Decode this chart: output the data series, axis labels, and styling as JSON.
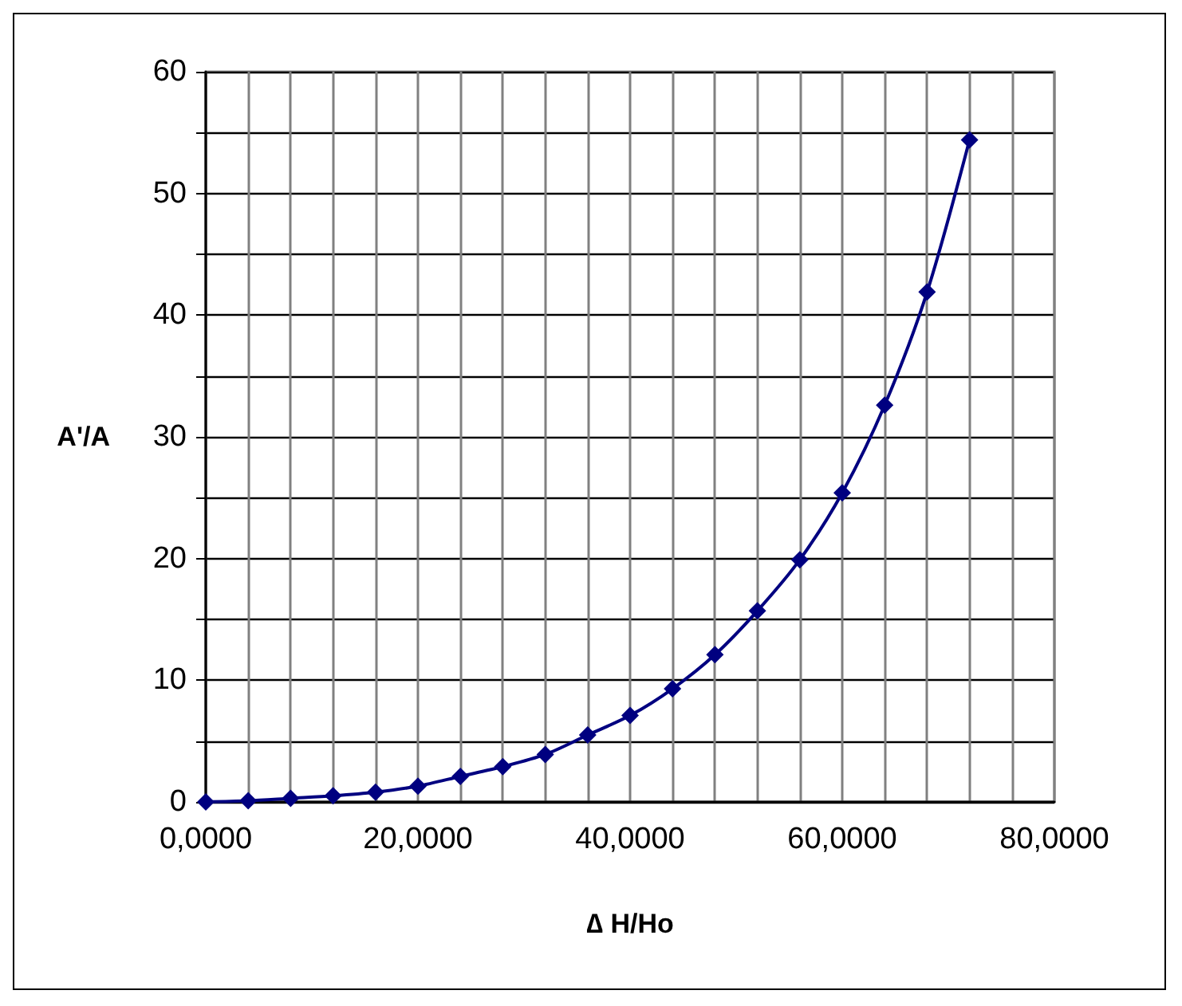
{
  "chart_data": {
    "type": "line",
    "xlabel": "∆ H/Ho",
    "ylabel": "A'/A",
    "categories": [
      "0,0000",
      null,
      null,
      null,
      null,
      "20,0000",
      null,
      null,
      null,
      null,
      "40,0000",
      null,
      null,
      null,
      null,
      "60,0000",
      null,
      null,
      null,
      null,
      "80,0000"
    ],
    "series": [
      {
        "color": "#000080",
        "values": [
          0,
          0.1,
          0.3,
          0.5,
          0.8,
          1.3,
          2.1,
          2.9,
          3.9,
          5.5,
          7.1,
          9.3,
          12.1,
          15.7,
          19.9,
          25.4,
          32.6,
          41.9,
          54.4,
          null,
          null
        ]
      }
    ],
    "ylim": [
      0,
      60
    ],
    "yticks": [
      0,
      {
        "value": 5,
        "label": null
      },
      10,
      {
        "value": 15,
        "label": null
      },
      20,
      {
        "value": 25,
        "label": null
      },
      30,
      {
        "value": 35,
        "label": null
      },
      40,
      {
        "value": 45,
        "label": null
      },
      50,
      {
        "value": 55,
        "label": null
      },
      60
    ],
    "grid": true,
    "marker": "diamond",
    "line_style": "solid"
  }
}
